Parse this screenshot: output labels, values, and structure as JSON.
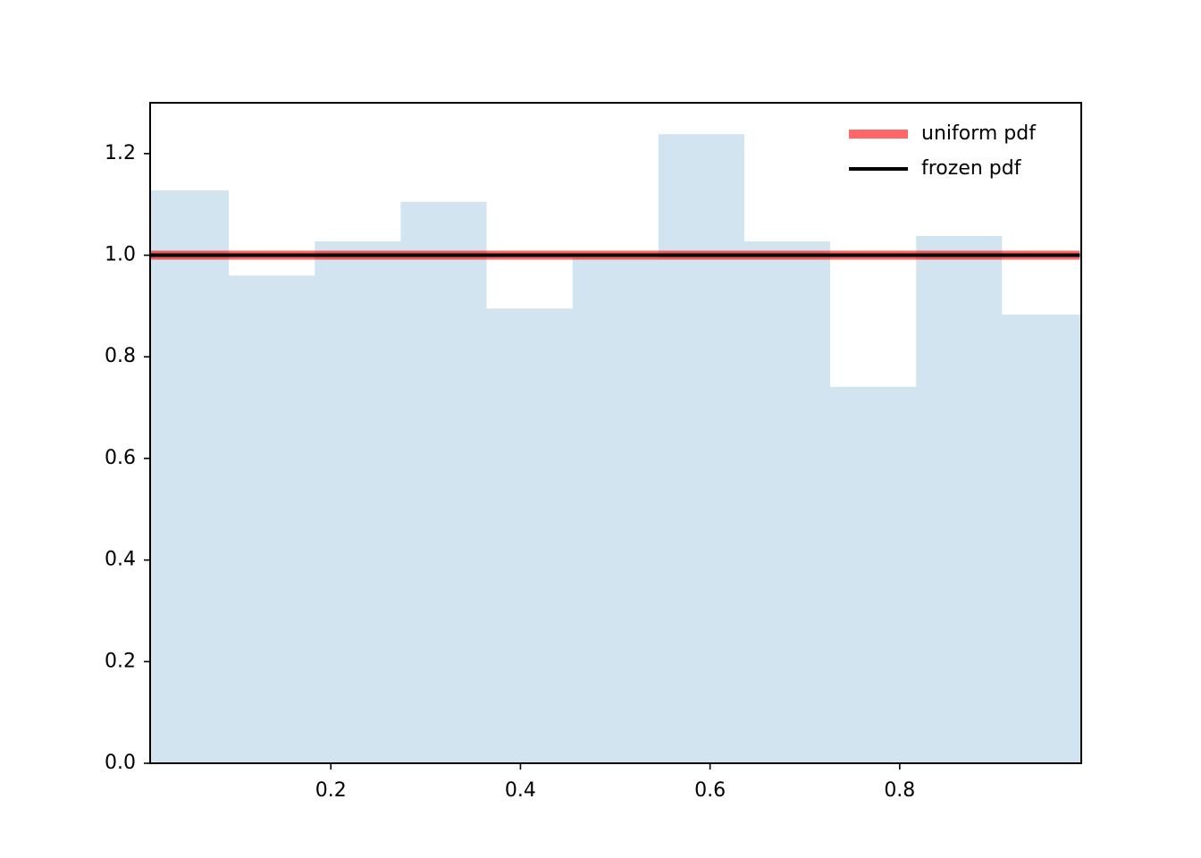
{
  "chart_data": {
    "type": "histogram",
    "bins": [
      0.0019,
      0.0925,
      0.1831,
      0.2737,
      0.3643,
      0.4549,
      0.5455,
      0.6361,
      0.7267,
      0.8173,
      0.9079,
      0.9985
    ],
    "values": [
      1.1275,
      0.96,
      1.027,
      1.105,
      0.895,
      0.995,
      1.238,
      1.027,
      0.741,
      1.038,
      0.883
    ],
    "color": "#1f77b4",
    "opacity": 0.2,
    "lines": [
      {
        "name": "uniform pdf",
        "color": "#ff0000",
        "opacity": 0.6,
        "width": 10,
        "x": [
          0.01,
          0.99
        ],
        "values": [
          1,
          1
        ]
      },
      {
        "name": "frozen pdf",
        "color": "#000000",
        "opacity": 1,
        "width": 4,
        "x": [
          0.01,
          0.99
        ],
        "values": [
          1,
          1
        ]
      }
    ],
    "xlim": [
      0.0094,
      0.9915
    ],
    "xticks": [
      0.2,
      0.4,
      0.6,
      0.8
    ],
    "ylim": [
      0,
      1.3
    ],
    "yticks": [
      {
        "value": 0,
        "label": "0.0"
      },
      0.2,
      0.4,
      0.6,
      0.8,
      {
        "value": 1,
        "label": "1.0"
      },
      1.2
    ],
    "legend": "upper right"
  }
}
